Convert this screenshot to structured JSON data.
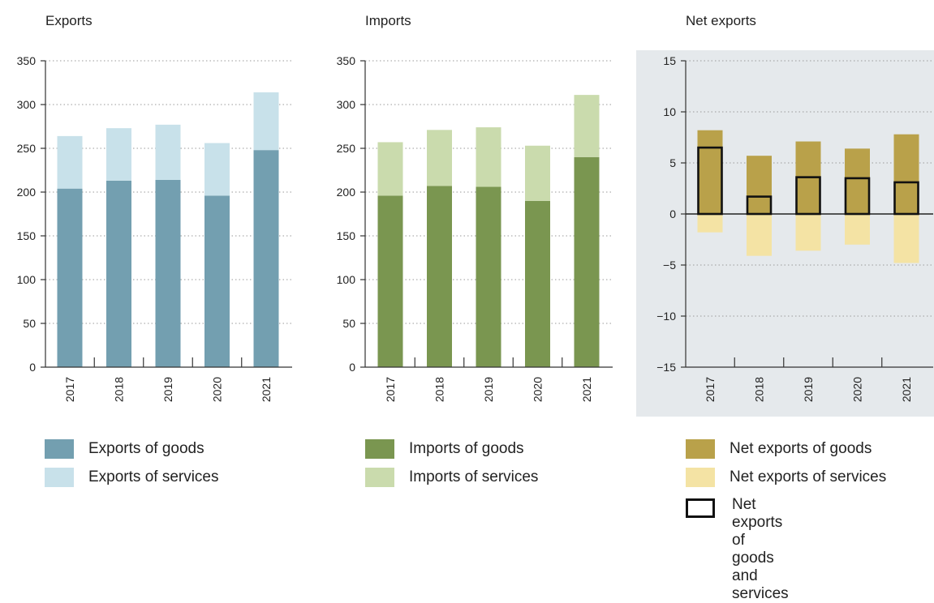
{
  "colors": {
    "exports_goods": "#739fb0",
    "exports_services": "#c8e1ea",
    "imports_goods": "#7a9650",
    "imports_services": "#cadbad",
    "net_goods": "#b9a14a",
    "net_services": "#f4e3a4",
    "net_total_outline": "#111111",
    "net_panel_bg": "#e5e9ec"
  },
  "chart_data": [
    {
      "type": "bar",
      "stacked": true,
      "title": "Exports",
      "categories": [
        "2017",
        "2018",
        "2019",
        "2020",
        "2021"
      ],
      "series": [
        {
          "name": "Exports of goods",
          "values": [
            204,
            213,
            214,
            196,
            248
          ]
        },
        {
          "name": "Exports of services",
          "values": [
            60,
            60,
            63,
            60,
            66
          ]
        }
      ],
      "ylim": [
        0,
        350
      ],
      "yticks": [
        0,
        50,
        100,
        150,
        200,
        250,
        300,
        350
      ],
      "grid": true
    },
    {
      "type": "bar",
      "stacked": true,
      "title": "Imports",
      "categories": [
        "2017",
        "2018",
        "2019",
        "2020",
        "2021"
      ],
      "series": [
        {
          "name": "Imports of goods",
          "values": [
            196,
            207,
            206,
            190,
            240
          ]
        },
        {
          "name": "Imports of services",
          "values": [
            61,
            64,
            68,
            63,
            71
          ]
        }
      ],
      "ylim": [
        0,
        350
      ],
      "yticks": [
        0,
        50,
        100,
        150,
        200,
        250,
        300,
        350
      ],
      "grid": true
    },
    {
      "type": "bar",
      "stacked": false,
      "title": "Net exports",
      "categories": [
        "2017",
        "2018",
        "2019",
        "2020",
        "2021"
      ],
      "series": [
        {
          "name": "Net exports of goods",
          "values": [
            8.2,
            5.7,
            7.1,
            6.4,
            7.8
          ]
        },
        {
          "name": "Net exports of services",
          "values": [
            -1.8,
            -4.1,
            -3.6,
            -3.0,
            -4.8
          ]
        },
        {
          "name": "Net exports of goods and services",
          "values": [
            6.5,
            1.7,
            3.6,
            3.5,
            3.1
          ]
        }
      ],
      "ylim": [
        -15,
        15
      ],
      "yticks": [
        -15,
        -10,
        -5,
        0,
        5,
        10,
        15
      ],
      "ytick_labels": [
        "−15",
        "−10",
        "−5",
        "0",
        "5",
        "10",
        "15"
      ],
      "grid": true
    }
  ],
  "legends": {
    "exports": [
      "Exports of goods",
      "Exports of services"
    ],
    "imports": [
      "Imports of goods",
      "Imports of services"
    ],
    "net": [
      "Net exports of goods",
      "Net exports of services",
      "Net exports of goods\nand services"
    ]
  }
}
